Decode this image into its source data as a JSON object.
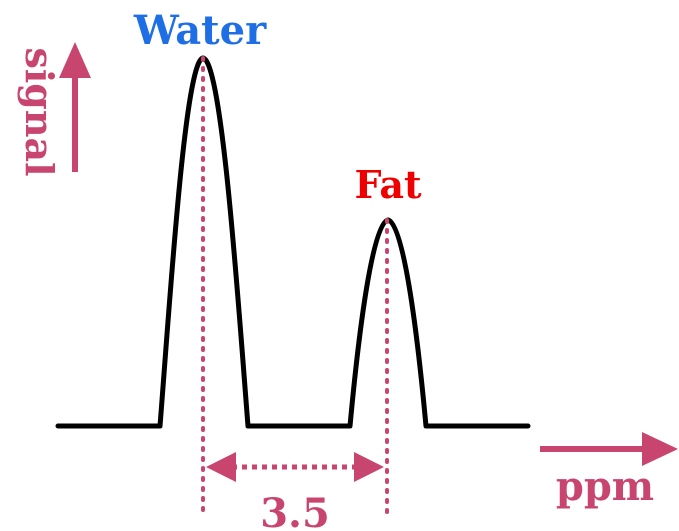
{
  "labels": {
    "water": "Water",
    "fat": "Fat",
    "signal": "signal",
    "ppm": "ppm",
    "shift": "3.5"
  },
  "colors": {
    "water_label": "#1e6fe6",
    "fat_label": "#ee0000",
    "accent": "#c8456f",
    "spectrum": "#000000"
  }
}
